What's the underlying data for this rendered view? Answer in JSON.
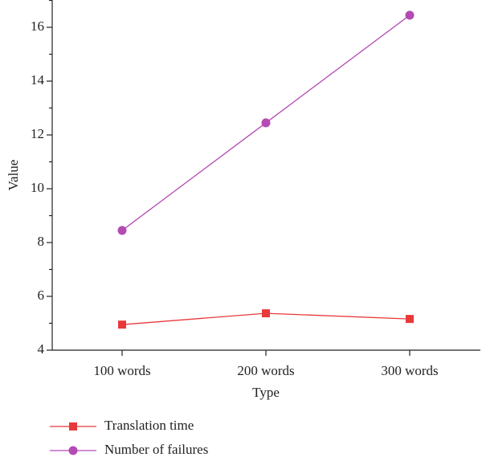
{
  "chart_data": {
    "type": "line",
    "x_label": "Type",
    "y_label": "Value",
    "categories": [
      "100 words",
      "200 words",
      "300 words"
    ],
    "series": [
      {
        "name": "Translation time",
        "color": "#e8393a",
        "marker": "square",
        "values": [
          4.95,
          5.37,
          5.16
        ]
      },
      {
        "name": "Number of failures",
        "color": "#b44ab4",
        "marker": "circle",
        "values": [
          8.45,
          12.45,
          16.45
        ]
      }
    ],
    "ylim": [
      4,
      17
    ],
    "yticks": [
      4,
      6,
      8,
      10,
      12,
      14,
      16
    ],
    "yminorticks": [
      5,
      7,
      9,
      11,
      13,
      15,
      17
    ],
    "grid": false,
    "legend": "bottom-left"
  }
}
